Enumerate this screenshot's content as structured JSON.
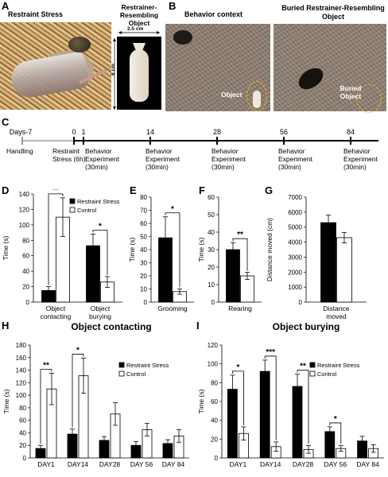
{
  "panel_letters": {
    "A": "A",
    "B": "B",
    "C": "C",
    "D": "D",
    "E": "E",
    "F": "F",
    "G": "G",
    "H": "H",
    "I": "I"
  },
  "photos": {
    "restraint_title": "Restraint Stress",
    "object_title": "Restrainer-Resembling Object",
    "object_width_label": "2.5 cm",
    "object_height_label": "6 cm",
    "behavior_title": "Behavior context",
    "buried_title": "Buried Restrainer-Resembling Object",
    "object_label": "Object",
    "buried_object_label": "Buried Object"
  },
  "timeline": {
    "days_prefix": "Days",
    "days": [
      "-7",
      "0",
      "1",
      "14",
      "28",
      "56",
      "84"
    ],
    "events": [
      [
        "Handling"
      ],
      [
        "Restraint",
        "Stress (6h)"
      ],
      [
        "Behavior",
        "Experiment",
        "(30min)"
      ],
      [
        "Behavior",
        "Experiment",
        "(30min)"
      ],
      [
        "Behavior",
        "Experiment",
        "(30min)"
      ],
      [
        "Behavior",
        "Experiment",
        "(30min)"
      ],
      [
        "Behavior",
        "Experiment",
        "(30min)"
      ]
    ]
  },
  "colors": {
    "stress": "#000000",
    "control": "#ffffff",
    "annotation": "#f0c400"
  },
  "chart_data": [
    {
      "id": "D",
      "type": "bar",
      "categories": [
        [
          "Object",
          "contacting"
        ],
        [
          "Object",
          "burying"
        ]
      ],
      "series": [
        {
          "name": "Restraint Stress",
          "values": [
            15,
            73
          ],
          "errors": [
            5,
            15
          ]
        },
        {
          "name": "Control",
          "values": [
            110,
            26
          ],
          "errors": [
            25,
            7
          ]
        }
      ],
      "ylabel": "Time (s)",
      "ylim": [
        0,
        140
      ],
      "yticks": [
        0,
        20,
        40,
        60,
        80,
        100,
        120,
        140
      ],
      "significance": [
        {
          "category": 0,
          "label": "**"
        },
        {
          "category": 1,
          "label": "*"
        }
      ],
      "legend": "top-right"
    },
    {
      "id": "E",
      "type": "bar",
      "categories": [
        [
          "Grooming"
        ]
      ],
      "series": [
        {
          "name": "Restraint Stress",
          "values": [
            49
          ],
          "errors": [
            16
          ]
        },
        {
          "name": "Control",
          "values": [
            8
          ],
          "errors": [
            2
          ]
        }
      ],
      "ylabel": "Time (s)",
      "ylim": [
        0,
        80
      ],
      "yticks": [
        0,
        10,
        20,
        30,
        40,
        50,
        60,
        70,
        80
      ],
      "significance": [
        {
          "category": 0,
          "label": "*"
        }
      ]
    },
    {
      "id": "F",
      "type": "bar",
      "categories": [
        [
          "Rearing"
        ]
      ],
      "series": [
        {
          "name": "Restraint Stress",
          "values": [
            30
          ],
          "errors": [
            4
          ]
        },
        {
          "name": "Control",
          "values": [
            15
          ],
          "errors": [
            2
          ]
        }
      ],
      "ylabel": "Time (s)",
      "ylim": [
        0,
        60
      ],
      "yticks": [
        0,
        10,
        20,
        30,
        40,
        50,
        60
      ],
      "significance": [
        {
          "category": 0,
          "label": "**"
        }
      ]
    },
    {
      "id": "G",
      "type": "bar",
      "categories": [
        [
          "Distance",
          "moved"
        ]
      ],
      "series": [
        {
          "name": "Restraint Stress",
          "values": [
            5300
          ],
          "errors": [
            500
          ]
        },
        {
          "name": "Control",
          "values": [
            4300
          ],
          "errors": [
            350
          ]
        }
      ],
      "ylabel": "Distance moved (cm)",
      "ylim": [
        0,
        7000
      ],
      "yticks": [
        0,
        1000,
        2000,
        3000,
        4000,
        5000,
        6000,
        7000
      ],
      "significance": []
    },
    {
      "id": "H",
      "type": "bar",
      "title": "Object contacting",
      "categories": [
        [
          "DAY1"
        ],
        [
          "DAY14"
        ],
        [
          "DAY28"
        ],
        [
          "DAY 56"
        ],
        [
          "DAY 84"
        ]
      ],
      "series": [
        {
          "name": "Restraint Stress",
          "values": [
            15,
            38,
            28,
            20,
            23
          ],
          "errors": [
            5,
            8,
            6,
            6,
            6
          ]
        },
        {
          "name": "Control",
          "values": [
            110,
            131,
            70,
            45,
            35
          ],
          "errors": [
            25,
            28,
            18,
            10,
            10
          ]
        }
      ],
      "ylabel": "Time (s)",
      "ylim": [
        0,
        180
      ],
      "yticks": [
        0,
        20,
        40,
        60,
        80,
        100,
        120,
        140,
        160,
        180
      ],
      "significance": [
        {
          "category": 0,
          "label": "**"
        },
        {
          "category": 1,
          "label": "*"
        }
      ],
      "legend": "top-right"
    },
    {
      "id": "I",
      "type": "bar",
      "title": "Object burying",
      "categories": [
        [
          "DAY1"
        ],
        [
          "DAY14"
        ],
        [
          "DAY28"
        ],
        [
          "DAY 56"
        ],
        [
          "DAY 84"
        ]
      ],
      "series": [
        {
          "name": "Restraint Stress",
          "values": [
            73,
            92,
            76,
            28,
            18
          ],
          "errors": [
            15,
            12,
            13,
            5,
            5
          ]
        },
        {
          "name": "Control",
          "values": [
            26,
            12,
            9,
            10,
            10
          ],
          "errors": [
            7,
            5,
            4,
            3,
            4
          ]
        }
      ],
      "ylabel": "Time (s)",
      "ylim": [
        0,
        120
      ],
      "yticks": [
        0,
        20,
        40,
        60,
        80,
        100,
        120
      ],
      "significance": [
        {
          "category": 0,
          "label": "*"
        },
        {
          "category": 1,
          "label": "***"
        },
        {
          "category": 2,
          "label": "**"
        },
        {
          "category": 3,
          "label": "*"
        }
      ],
      "legend": "top-right"
    }
  ]
}
